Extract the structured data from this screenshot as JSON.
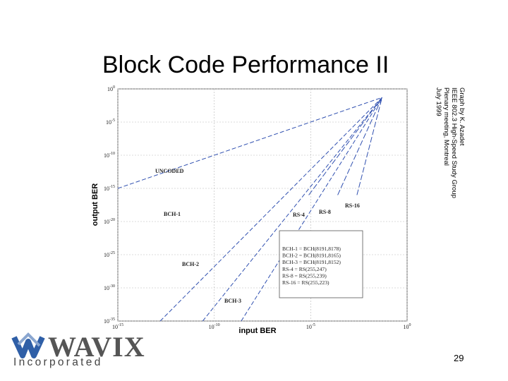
{
  "slide": {
    "title": "Block Code Performance II",
    "page_number": "29",
    "credit_lines": [
      "Graph by K. Azadet",
      "IEEE 802.3 High-Speed Study Group",
      "Plenary meeting, Montreal",
      "July 1999"
    ]
  },
  "logo": {
    "wordmark": "WAVIX",
    "subtitle": "Incorporated",
    "colors": {
      "blue": "#2f5fa7",
      "gray": "#6a6a6a"
    }
  },
  "chart_data": {
    "type": "line",
    "title": "",
    "xlabel": "input BER",
    "ylabel": "output BER",
    "xscale": "log",
    "yscale": "log",
    "xlim": [
      1e-15,
      1
    ],
    "ylim": [
      1e-35,
      1
    ],
    "x_ticks": [
      {
        "exp": -15,
        "label": "10^-15"
      },
      {
        "exp": -10,
        "label": "10^-10"
      },
      {
        "exp": -5,
        "label": "10^-5"
      },
      {
        "exp": 0,
        "label": "10^0"
      }
    ],
    "y_ticks": [
      {
        "exp": 0,
        "label": "10^0"
      },
      {
        "exp": -5,
        "label": "10^-5"
      },
      {
        "exp": -10,
        "label": "10^-10"
      },
      {
        "exp": -15,
        "label": "10^-15"
      },
      {
        "exp": -20,
        "label": "10^-20"
      },
      {
        "exp": -25,
        "label": "10^-25"
      },
      {
        "exp": -30,
        "label": "10^-30"
      },
      {
        "exp": -35,
        "label": "10^-35"
      }
    ],
    "grid": true,
    "series": [
      {
        "name": "UNCODED",
        "x_exp": [
          -15,
          -1.3
        ],
        "y_exp": [
          -15,
          -1.3
        ]
      },
      {
        "name": "BCH-1",
        "x_exp": [
          -12.8,
          -1.3
        ],
        "y_exp": [
          -35,
          -1.3
        ]
      },
      {
        "name": "BCH-2",
        "x_exp": [
          -10.6,
          -1.3
        ],
        "y_exp": [
          -35,
          -1.3
        ]
      },
      {
        "name": "BCH-3",
        "x_exp": [
          -8.6,
          -1.3
        ],
        "y_exp": [
          -35,
          -1.3
        ]
      },
      {
        "name": "RS-4",
        "x_exp": [
          -5.1,
          -1.3
        ],
        "y_exp": [
          -16,
          -1.3
        ]
      },
      {
        "name": "RS-8",
        "x_exp": [
          -3.6,
          -1.3
        ],
        "y_exp": [
          -16,
          -1.3
        ]
      },
      {
        "name": "RS-16",
        "x_exp": [
          -2.6,
          -1.3
        ],
        "y_exp": [
          -16,
          -1.3
        ]
      }
    ],
    "legend": {
      "placement": "bottom-right",
      "entries": [
        "BCH-1 = BCH(8191,8178)",
        "BCH-2 = BCH(8191,8165)",
        "BCH-3 = BCH(8191,8152)",
        "RS-4 = RS(255,247)",
        "RS-8 = RS(255,239)",
        "RS-16 = RS(255,223)"
      ]
    }
  }
}
